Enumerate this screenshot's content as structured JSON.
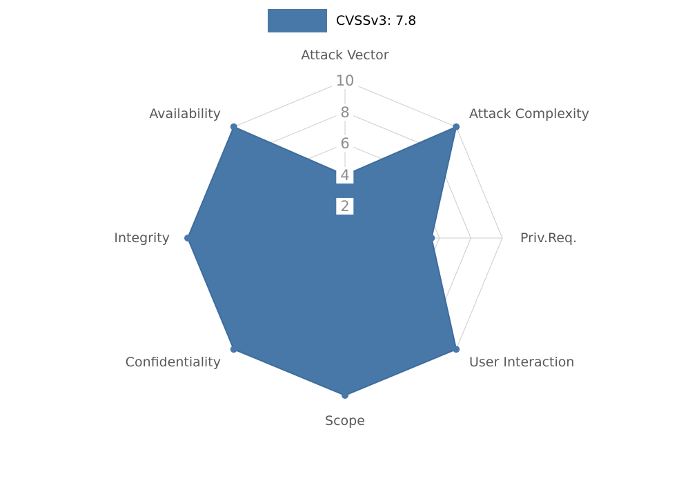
{
  "legend": {
    "label": "CVSSv3: 7.8",
    "swatch_color": "#4878a8"
  },
  "chart_data": {
    "type": "radar",
    "title": "CVSSv3: 7.8",
    "categories": [
      "Attack Vector",
      "Attack Complexity",
      "Priv.Req.",
      "User Interaction",
      "Scope",
      "Confidentiality",
      "Integrity",
      "Availability"
    ],
    "series": [
      {
        "name": "CVSSv3: 7.8",
        "values": [
          4,
          10,
          5.5,
          10,
          10,
          10,
          10,
          10
        ]
      }
    ],
    "ticks": [
      2,
      4,
      6,
      8,
      10
    ],
    "axis_max": 10,
    "axis_min": 0,
    "grid": true,
    "legend_position": "top-center",
    "fill_color": "#4878a8",
    "edge_color": "#3d6c9c",
    "grid_color": "#cccccc",
    "axis_label_color": "#595959",
    "tick_label_color": "#8c8c8c",
    "background_color": "#ffffff"
  }
}
